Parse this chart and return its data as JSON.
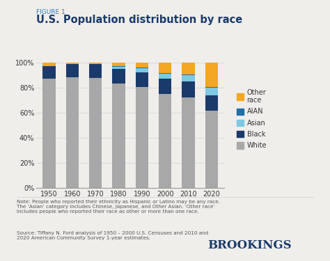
{
  "years": [
    "1950",
    "1960",
    "1970",
    "1980",
    "1990",
    "2000",
    "2010",
    "2020"
  ],
  "white": [
    87.5,
    88.6,
    87.6,
    83.2,
    80.3,
    75.1,
    72.4,
    61.6
  ],
  "black": [
    10.0,
    10.5,
    11.1,
    11.7,
    12.1,
    12.3,
    12.6,
    12.4
  ],
  "asian": [
    0.0,
    0.0,
    0.0,
    1.5,
    2.9,
    3.6,
    4.8,
    6.0
  ],
  "aian": [
    0.0,
    0.0,
    0.0,
    0.6,
    0.8,
    0.9,
    0.9,
    0.7
  ],
  "other_race": [
    2.5,
    0.9,
    1.3,
    3.0,
    3.9,
    8.1,
    9.3,
    19.3
  ],
  "colors": {
    "white": "#a8a8a8",
    "black": "#1a3a6b",
    "asian": "#7ec8e3",
    "aian": "#1e6fa8",
    "other_race": "#f5a623"
  },
  "title": "U.S. Population distribution by race",
  "figure_label": "FIGURE 1",
  "note_text": "Note: People who reported their ethnicity as Hispanic or Latino may be any race.\nThe ‘Asian’ category includes Chinese, Japanese, and Other Asian. ‘Other race’\nincludes people who reported their race as other or more than one race.",
  "source_text": "Source: Tiffany N. Ford analysis of 1950 – 2000 U.S. Censuses and 2010 and\n2020 American Community Survey 1-year estimates.",
  "brookings_text": "BROOKINGS",
  "background_color": "#f0eeeb",
  "bar_width": 0.55,
  "ylim": [
    0,
    100
  ],
  "yticks": [
    0,
    20,
    40,
    60,
    80,
    100
  ],
  "ytick_labels": [
    "0%",
    "20%",
    "40%",
    "60%",
    "80%",
    "100%"
  ]
}
